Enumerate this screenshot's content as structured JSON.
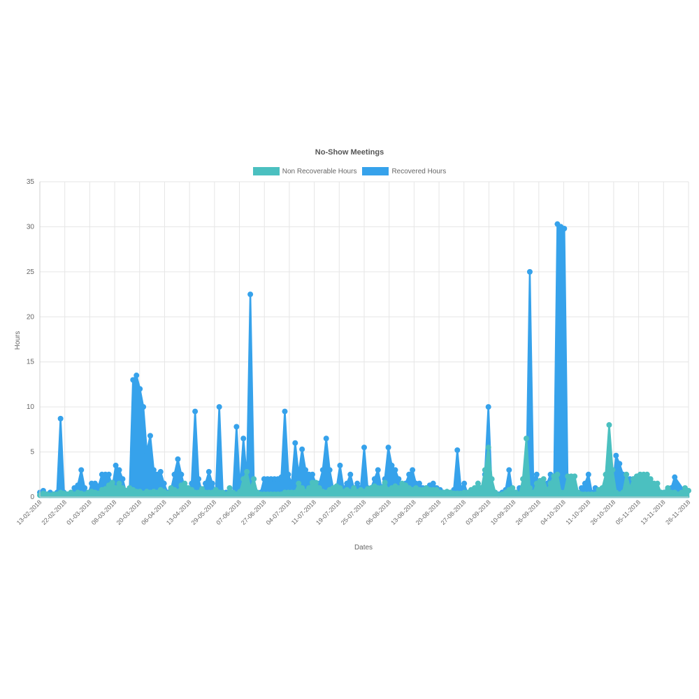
{
  "chart_data": {
    "type": "area",
    "title": "No-Show Meetings",
    "xlabel": "Dates",
    "ylabel": "Hours",
    "ylim": [
      0,
      35
    ],
    "yticks": [
      0,
      5,
      10,
      15,
      20,
      25,
      30,
      35
    ],
    "x_tick_labels": [
      "13-02-2018",
      "22-02-2018",
      "01-03-2018",
      "08-03-2018",
      "20-03-2018",
      "06-04-2018",
      "13-04-2018",
      "29-05-2018",
      "07-06-2018",
      "27-06-2018",
      "04-07-2018",
      "11-07-2018",
      "19-07-2018",
      "25-07-2018",
      "06-08-2018",
      "13-08-2018",
      "20-08-2018",
      "27-08-2018",
      "03-09-2018",
      "10-09-2018",
      "26-09-2018",
      "04-10-2018",
      "11-10-2018",
      "26-10-2018",
      "05-11-2018",
      "13-11-2018",
      "26-11-2018"
    ],
    "grid": true,
    "legend_position": "top",
    "series": [
      {
        "name": "Non Recoverable Hours",
        "color": "#4bc0c0",
        "values": [
          0.2,
          0.4,
          0.3,
          0.2,
          0.3,
          0.3,
          0.5,
          0.4,
          0.3,
          0.5,
          0.3,
          0.5,
          0.4,
          0.3,
          0.5,
          0.6,
          0.5,
          0.4,
          0.8,
          0.9,
          1.3,
          1.6,
          1.0,
          1.5,
          1.0,
          0.7,
          1.0,
          0.8,
          0.6,
          0.6,
          0.4,
          0.6,
          0.5,
          0.6,
          0.5,
          0.8,
          0.6,
          0.4,
          1.0,
          0.8,
          0.6,
          1.3,
          1.5,
          1.0,
          0.8,
          0.5,
          0.5,
          0.9,
          0.5,
          0.5,
          0.5,
          0.8,
          0.5,
          0.5,
          0.3,
          1.0,
          0.5,
          0.3,
          0.6,
          2.0,
          2.8,
          1.0,
          2.0,
          0.5,
          0.3,
          0.3,
          0.3,
          0.3,
          0.3,
          0.3,
          0.3,
          0.5,
          0.5,
          0.5,
          0.5,
          1.5,
          1.0,
          0.6,
          1.0,
          1.6,
          1.6,
          1.0,
          0.6,
          0.5,
          0.8,
          1.0,
          1.2,
          1.0,
          0.6,
          0.8,
          0.6,
          1.0,
          0.6,
          0.8,
          0.6,
          0.9,
          1.0,
          1.2,
          1.0,
          1.0,
          1.6,
          0.8,
          1.0,
          1.2,
          1.0,
          1.5,
          1.3,
          1.0,
          0.8,
          1.0,
          0.8,
          0.8,
          1.0,
          0.8,
          0.8,
          0.8,
          0.5,
          0.5,
          0.6,
          0.5,
          0.4,
          0.4,
          0.4,
          0.5,
          0.5,
          0.8,
          1.0,
          1.5,
          1.0,
          3.0,
          5.5,
          2.0,
          0.5,
          0.2,
          0.3,
          0.5,
          0.8,
          1.0,
          0.5,
          0.3,
          2.0,
          6.5,
          1.0,
          0.5,
          1.5,
          1.8,
          2.0,
          0.8,
          1.5,
          2.3,
          2.5,
          0.5,
          0.5,
          2.3,
          2.3,
          2.3,
          0.5,
          0.3,
          0.3,
          0.3,
          0.3,
          0.3,
          0.8,
          1.0,
          2.5,
          8.0,
          3.0,
          0.5,
          0.3,
          0.5,
          2.5,
          1.0,
          2.0,
          2.3,
          2.5,
          2.5,
          2.5,
          2.0,
          1.5,
          1.5,
          0.5,
          0.5,
          1.0,
          0.5,
          0.5,
          0.3,
          0.5,
          1.0,
          0.7
        ]
      },
      {
        "name": "Recovered Hours",
        "color": "#36a2eb",
        "values": [
          0.5,
          0.7,
          0.3,
          0.5,
          0.3,
          0.5,
          8.7,
          0.5,
          0.3,
          0.3,
          1.0,
          1.3,
          3.0,
          1.0,
          0.3,
          1.5,
          1.5,
          1.2,
          2.5,
          2.5,
          2.5,
          1.0,
          3.5,
          3.0,
          2.0,
          0.5,
          0.5,
          13.0,
          13.5,
          12.0,
          10.0,
          5.0,
          6.8,
          3.0,
          2.5,
          2.8,
          1.5,
          0.5,
          0.8,
          2.5,
          4.2,
          2.5,
          1.0,
          0.5,
          1.5,
          9.5,
          2.0,
          0.5,
          1.5,
          2.8,
          1.5,
          0.5,
          10.0,
          0.5,
          0.5,
          0.5,
          0.5,
          7.8,
          1.0,
          6.5,
          2.0,
          22.5,
          2.0,
          0.5,
          0.5,
          2.0,
          2.0,
          2.0,
          2.0,
          2.0,
          2.2,
          9.5,
          2.5,
          1.5,
          6.0,
          2.5,
          5.3,
          3.0,
          2.5,
          2.5,
          1.5,
          1.5,
          3.0,
          6.5,
          3.0,
          1.0,
          1.0,
          3.5,
          1.0,
          1.5,
          2.5,
          1.0,
          1.5,
          1.0,
          5.5,
          1.0,
          1.0,
          2.0,
          3.0,
          1.0,
          2.0,
          5.5,
          3.5,
          3.0,
          2.0,
          1.0,
          1.5,
          2.5,
          3.0,
          1.5,
          1.5,
          1.0,
          1.0,
          1.3,
          1.5,
          1.0,
          0.8,
          0.5,
          0.3,
          0.3,
          0.8,
          5.2,
          1.0,
          1.5,
          0.3,
          0.5,
          0.5,
          1.5,
          1.0,
          2.5,
          10.0,
          0.5,
          0.3,
          0.3,
          0.5,
          0.8,
          3.0,
          0.5,
          0.5,
          1.0,
          0.5,
          1.0,
          25.0,
          2.0,
          2.5,
          0.3,
          1.0,
          1.5,
          2.5,
          0.5,
          30.3,
          30.0,
          29.8,
          0.5,
          0.3,
          0.3,
          0.3,
          1.0,
          1.5,
          2.5,
          0.5,
          1.0,
          0.5,
          0.5,
          0.5,
          0.3,
          1.0,
          4.6,
          3.7,
          2.5,
          2.0,
          2.0,
          2.0,
          2.0,
          1.5,
          1.0,
          1.0,
          1.0,
          0.5,
          0.8,
          0.5,
          0.5,
          0.8,
          1.0,
          2.2
        ]
      }
    ]
  }
}
